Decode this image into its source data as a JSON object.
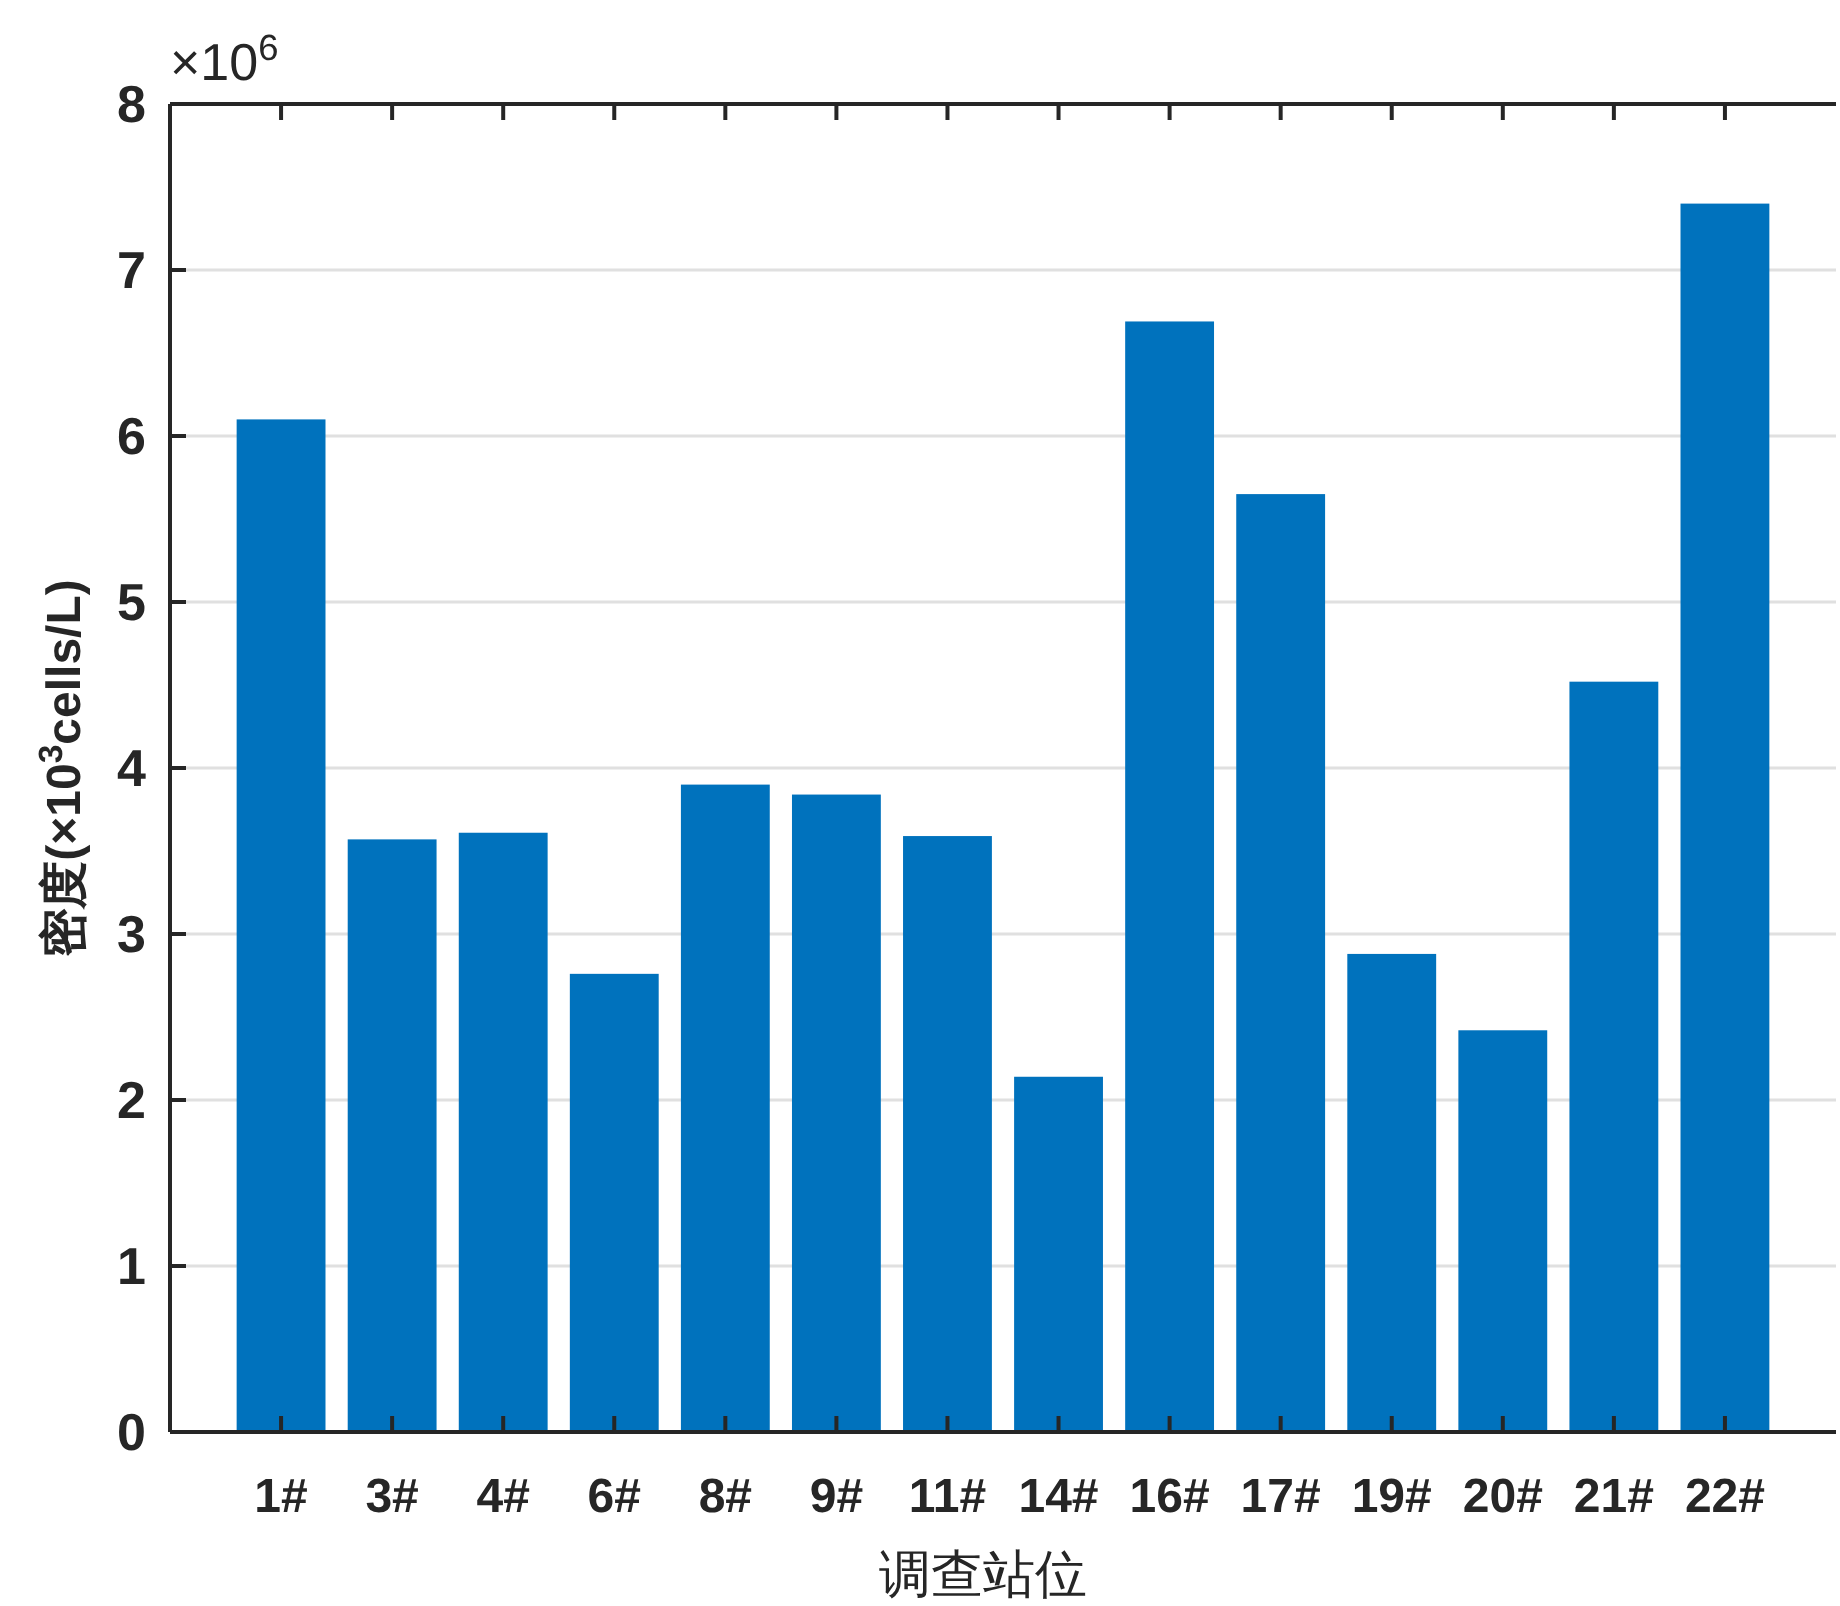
{
  "chart_data": {
    "type": "bar",
    "xlabel": "调查站位",
    "ylabel": "密度(×10$^{3}$cells/L)",
    "annotations": [
      "×10$^{6}$"
    ],
    "categories": [
      "1#",
      "3#",
      "4#",
      "6#",
      "8#",
      "9#",
      "11#",
      "14#",
      "16#",
      "17#",
      "19#",
      "20#",
      "21#",
      "22#"
    ],
    "values": [
      6.1,
      3.57,
      3.61,
      2.76,
      3.9,
      3.84,
      3.59,
      2.14,
      6.69,
      5.65,
      2.88,
      2.42,
      4.52,
      7.4
    ],
    "color": "#0072bd",
    "ylim": [
      0,
      8
    ],
    "yticks": [
      0,
      1,
      2,
      3,
      4,
      5,
      6,
      7,
      8
    ],
    "grid": "y"
  }
}
